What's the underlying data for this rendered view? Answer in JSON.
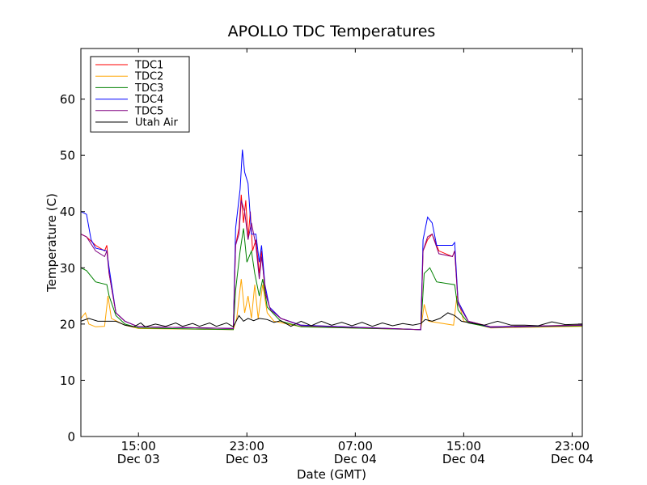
{
  "chart_data": {
    "type": "line",
    "title": "APOLLO TDC Temperatures",
    "xlabel": "Date (GMT)",
    "ylabel": "Temperature (C)",
    "x_unit": "hours",
    "xlim": [
      "Dec 03 10:45",
      "Dec 04 23:45"
    ],
    "ylim": [
      0,
      69
    ],
    "grid": false,
    "legend_position": "top-left",
    "x_ticks": [
      {
        "x": "Dec 03 15:00",
        "time": "15:00",
        "date": "Dec 03"
      },
      {
        "x": "Dec 03 23:00",
        "time": "23:00",
        "date": "Dec 03"
      },
      {
        "x": "Dec 04 07:00",
        "time": "07:00",
        "date": "Dec 04"
      },
      {
        "x": "Dec 04 15:00",
        "time": "15:00",
        "date": "Dec 04"
      },
      {
        "x": "Dec 04 23:00",
        "time": "23:00",
        "date": "Dec 04"
      }
    ],
    "y_ticks": [
      0,
      10,
      20,
      30,
      40,
      50,
      60
    ],
    "series": [
      {
        "name": "TDC1",
        "color": "#ff0000",
        "points": [
          [
            "Dec 03 10:45",
            36
          ],
          [
            "Dec 03 11:10",
            35.5
          ],
          [
            "Dec 03 11:50",
            34
          ],
          [
            "Dec 03 12:30",
            33
          ],
          [
            "Dec 03 12:40",
            34
          ],
          [
            "Dec 03 12:50",
            29
          ],
          [
            "Dec 03 13:20",
            22
          ],
          [
            "Dec 03 14:00",
            20.5
          ],
          [
            "Dec 03 15:00",
            19.5
          ],
          [
            "Dec 03 22:00",
            19.2
          ],
          [
            "Dec 03 22:10",
            34
          ],
          [
            "Dec 03 22:25",
            37
          ],
          [
            "Dec 03 22:35",
            43
          ],
          [
            "Dec 03 22:45",
            38
          ],
          [
            "Dec 03 22:55",
            42
          ],
          [
            "Dec 03 23:05",
            35
          ],
          [
            "Dec 03 23:15",
            40
          ],
          [
            "Dec 03 23:25",
            33
          ],
          [
            "Dec 03 23:40",
            35
          ],
          [
            "Dec 03 23:55",
            29
          ],
          [
            "Dec 04 00:05",
            33
          ],
          [
            "Dec 04 00:20",
            26
          ],
          [
            "Dec 04 00:40",
            23
          ],
          [
            "Dec 04 01:30",
            21
          ],
          [
            "Dec 04 03:00",
            19.8
          ],
          [
            "Dec 04 11:50",
            19
          ],
          [
            "Dec 04 12:00",
            33
          ],
          [
            "Dec 04 12:20",
            35
          ],
          [
            "Dec 04 12:40",
            36
          ],
          [
            "Dec 04 13:10",
            33
          ],
          [
            "Dec 04 14:10",
            32
          ],
          [
            "Dec 04 14:20",
            33
          ],
          [
            "Dec 04 14:35",
            24
          ],
          [
            "Dec 04 15:20",
            20.5
          ],
          [
            "Dec 04 17:00",
            19.5
          ],
          [
            "Dec 04 23:45",
            19.8
          ]
        ]
      },
      {
        "name": "TDC2",
        "color": "#ffa500",
        "points": [
          [
            "Dec 03 10:45",
            21
          ],
          [
            "Dec 03 11:05",
            22
          ],
          [
            "Dec 03 11:20",
            20
          ],
          [
            "Dec 03 11:50",
            19.5
          ],
          [
            "Dec 03 12:30",
            19.6
          ],
          [
            "Dec 03 12:45",
            25
          ],
          [
            "Dec 03 13:00",
            21
          ],
          [
            "Dec 03 14:00",
            19.8
          ],
          [
            "Dec 03 15:00",
            19.2
          ],
          [
            "Dec 03 22:00",
            19
          ],
          [
            "Dec 03 22:15",
            21
          ],
          [
            "Dec 03 22:35",
            28
          ],
          [
            "Dec 03 22:50",
            22
          ],
          [
            "Dec 03 23:05",
            25
          ],
          [
            "Dec 03 23:20",
            21
          ],
          [
            "Dec 03 23:35",
            27
          ],
          [
            "Dec 03 23:50",
            21
          ],
          [
            "Dec 04 00:10",
            27
          ],
          [
            "Dec 04 00:30",
            22
          ],
          [
            "Dec 04 01:00",
            20.5
          ],
          [
            "Dec 04 03:00",
            19.5
          ],
          [
            "Dec 04 11:50",
            19
          ],
          [
            "Dec 04 12:05",
            23.5
          ],
          [
            "Dec 04 12:25",
            20.5
          ],
          [
            "Dec 04 14:15",
            19.8
          ],
          [
            "Dec 04 14:30",
            25
          ],
          [
            "Dec 04 15:00",
            20.5
          ],
          [
            "Dec 04 17:00",
            19.3
          ],
          [
            "Dec 04 23:45",
            19.6
          ]
        ]
      },
      {
        "name": "TDC3",
        "color": "#008000",
        "points": [
          [
            "Dec 03 10:45",
            30
          ],
          [
            "Dec 03 11:10",
            29.5
          ],
          [
            "Dec 03 11:50",
            27.5
          ],
          [
            "Dec 03 12:40",
            27
          ],
          [
            "Dec 03 12:50",
            25
          ],
          [
            "Dec 03 13:20",
            21.5
          ],
          [
            "Dec 03 14:00",
            20
          ],
          [
            "Dec 03 15:00",
            19.3
          ],
          [
            "Dec 03 22:00",
            19
          ],
          [
            "Dec 03 22:10",
            26
          ],
          [
            "Dec 03 22:30",
            33
          ],
          [
            "Dec 03 22:45",
            37
          ],
          [
            "Dec 03 23:00",
            31
          ],
          [
            "Dec 03 23:20",
            33
          ],
          [
            "Dec 03 23:35",
            29
          ],
          [
            "Dec 03 23:55",
            25
          ],
          [
            "Dec 04 00:10",
            28
          ],
          [
            "Dec 04 00:30",
            23
          ],
          [
            "Dec 04 01:30",
            20.5
          ],
          [
            "Dec 04 03:00",
            19.5
          ],
          [
            "Dec 04 11:50",
            19
          ],
          [
            "Dec 04 12:05",
            29
          ],
          [
            "Dec 04 12:30",
            30
          ],
          [
            "Dec 04 13:00",
            27.5
          ],
          [
            "Dec 04 14:20",
            27
          ],
          [
            "Dec 04 14:35",
            22.5
          ],
          [
            "Dec 04 15:20",
            20.2
          ],
          [
            "Dec 04 17:00",
            19.4
          ],
          [
            "Dec 04 23:45",
            19.7
          ]
        ]
      },
      {
        "name": "TDC4",
        "color": "#0000ff",
        "points": [
          [
            "Dec 03 10:45",
            40
          ],
          [
            "Dec 03 11:10",
            39.5
          ],
          [
            "Dec 03 11:30",
            35
          ],
          [
            "Dec 03 11:50",
            33.5
          ],
          [
            "Dec 03 12:40",
            33
          ],
          [
            "Dec 03 12:50",
            30
          ],
          [
            "Dec 03 13:20",
            22
          ],
          [
            "Dec 03 14:00",
            20.5
          ],
          [
            "Dec 03 15:00",
            19.5
          ],
          [
            "Dec 03 22:00",
            19.2
          ],
          [
            "Dec 03 22:10",
            37
          ],
          [
            "Dec 03 22:30",
            44
          ],
          [
            "Dec 03 22:40",
            51
          ],
          [
            "Dec 03 22:50",
            47
          ],
          [
            "Dec 03 23:05",
            45
          ],
          [
            "Dec 03 23:20",
            36
          ],
          [
            "Dec 03 23:40",
            36
          ],
          [
            "Dec 03 23:55",
            31
          ],
          [
            "Dec 04 00:05",
            34
          ],
          [
            "Dec 04 00:20",
            27
          ],
          [
            "Dec 04 00:40",
            23
          ],
          [
            "Dec 04 01:30",
            21
          ],
          [
            "Dec 04 03:00",
            19.8
          ],
          [
            "Dec 04 11:50",
            19
          ],
          [
            "Dec 04 12:00",
            35
          ],
          [
            "Dec 04 12:20",
            39
          ],
          [
            "Dec 04 12:40",
            38
          ],
          [
            "Dec 04 13:00",
            34
          ],
          [
            "Dec 04 14:10",
            34
          ],
          [
            "Dec 04 14:20",
            34.5
          ],
          [
            "Dec 04 14:35",
            24
          ],
          [
            "Dec 04 15:20",
            20.5
          ],
          [
            "Dec 04 17:00",
            19.4
          ],
          [
            "Dec 04 23:45",
            19.8
          ]
        ]
      },
      {
        "name": "TDC5",
        "color": "#800080",
        "points": [
          [
            "Dec 03 10:45",
            36
          ],
          [
            "Dec 03 11:10",
            35.5
          ],
          [
            "Dec 03 11:50",
            33
          ],
          [
            "Dec 03 12:30",
            32
          ],
          [
            "Dec 03 12:40",
            33
          ],
          [
            "Dec 03 12:50",
            29
          ],
          [
            "Dec 03 13:20",
            22
          ],
          [
            "Dec 03 14:00",
            20.5
          ],
          [
            "Dec 03 15:00",
            19.5
          ],
          [
            "Dec 03 22:00",
            19.2
          ],
          [
            "Dec 03 22:10",
            34
          ],
          [
            "Dec 03 22:25",
            36
          ],
          [
            "Dec 03 22:35",
            42
          ],
          [
            "Dec 03 22:50",
            40
          ],
          [
            "Dec 03 23:05",
            35
          ],
          [
            "Dec 03 23:20",
            38
          ],
          [
            "Dec 03 23:40",
            34
          ],
          [
            "Dec 03 23:55",
            28
          ],
          [
            "Dec 04 00:05",
            32
          ],
          [
            "Dec 04 00:25",
            25
          ],
          [
            "Dec 04 00:45",
            22.5
          ],
          [
            "Dec 04 01:30",
            21
          ],
          [
            "Dec 04 03:00",
            19.7
          ],
          [
            "Dec 04 11:50",
            19
          ],
          [
            "Dec 04 12:00",
            33
          ],
          [
            "Dec 04 12:20",
            35.5
          ],
          [
            "Dec 04 12:40",
            36
          ],
          [
            "Dec 04 13:10",
            32.5
          ],
          [
            "Dec 04 14:10",
            32
          ],
          [
            "Dec 04 14:20",
            33
          ],
          [
            "Dec 04 14:35",
            23.5
          ],
          [
            "Dec 04 15:20",
            20.5
          ],
          [
            "Dec 04 17:00",
            19.5
          ],
          [
            "Dec 04 23:45",
            19.8
          ]
        ]
      },
      {
        "name": "Utah Air",
        "color": "#000000",
        "points": [
          [
            "Dec 03 10:45",
            20.5
          ],
          [
            "Dec 03 11:20",
            21
          ],
          [
            "Dec 03 12:00",
            20.5
          ],
          [
            "Dec 03 12:45",
            20.5
          ],
          [
            "Dec 03 13:20",
            20.5
          ],
          [
            "Dec 03 14:00",
            19.8
          ],
          [
            "Dec 03 14:40",
            19.5
          ],
          [
            "Dec 03 15:10",
            20.2
          ],
          [
            "Dec 03 15:30",
            19.5
          ],
          [
            "Dec 03 16:15",
            20
          ],
          [
            "Dec 03 17:00",
            19.6
          ],
          [
            "Dec 03 17:45",
            20.2
          ],
          [
            "Dec 03 18:15",
            19.6
          ],
          [
            "Dec 03 19:00",
            20.1
          ],
          [
            "Dec 03 19:30",
            19.6
          ],
          [
            "Dec 03 20:15",
            20.2
          ],
          [
            "Dec 03 20:45",
            19.6
          ],
          [
            "Dec 03 21:30",
            20.2
          ],
          [
            "Dec 03 22:00",
            19.5
          ],
          [
            "Dec 03 22:25",
            21.5
          ],
          [
            "Dec 03 22:45",
            20.5
          ],
          [
            "Dec 03 23:05",
            21
          ],
          [
            "Dec 03 23:30",
            20.6
          ],
          [
            "Dec 03 23:55",
            21
          ],
          [
            "Dec 04 00:30",
            20.8
          ],
          [
            "Dec 04 01:00",
            20.3
          ],
          [
            "Dec 04 01:30",
            20.6
          ],
          [
            "Dec 04 02:15",
            19.6
          ],
          [
            "Dec 04 03:00",
            20.5
          ],
          [
            "Dec 04 03:45",
            19.7
          ],
          [
            "Dec 04 04:30",
            20.5
          ],
          [
            "Dec 04 05:15",
            19.8
          ],
          [
            "Dec 04 06:00",
            20.3
          ],
          [
            "Dec 04 06:45",
            19.7
          ],
          [
            "Dec 04 07:30",
            20.3
          ],
          [
            "Dec 04 08:15",
            19.6
          ],
          [
            "Dec 04 09:00",
            20.2
          ],
          [
            "Dec 04 09:45",
            19.7
          ],
          [
            "Dec 04 10:30",
            20.1
          ],
          [
            "Dec 04 11:15",
            19.8
          ],
          [
            "Dec 04 11:50",
            20.1
          ],
          [
            "Dec 04 12:10",
            20.8
          ],
          [
            "Dec 04 12:40",
            20.5
          ],
          [
            "Dec 04 13:15",
            21
          ],
          [
            "Dec 04 13:50",
            22
          ],
          [
            "Dec 04 14:20",
            21.5
          ],
          [
            "Dec 04 14:50",
            20.5
          ],
          [
            "Dec 04 15:30",
            20.2
          ],
          [
            "Dec 04 16:30",
            19.8
          ],
          [
            "Dec 04 17:30",
            20.5
          ],
          [
            "Dec 04 18:30",
            19.8
          ],
          [
            "Dec 04 19:30",
            19.8
          ],
          [
            "Dec 04 20:30",
            19.7
          ],
          [
            "Dec 04 21:30",
            20.4
          ],
          [
            "Dec 04 22:30",
            19.9
          ],
          [
            "Dec 04 23:45",
            20
          ]
        ]
      }
    ]
  }
}
